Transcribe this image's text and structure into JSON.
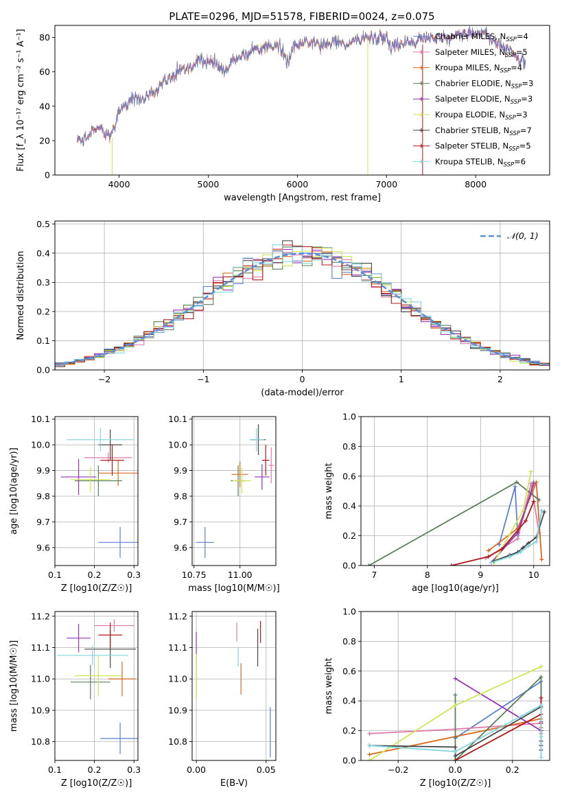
{
  "figure": {
    "title": "PLATE=0296, MJD=51578, FIBERID=0024, z=0.075"
  },
  "chart_data": [
    {
      "id": "spectrum",
      "type": "line",
      "xlabel": "wavelength [Angstrom, rest frame]",
      "ylabel": "Flux [f_λ 10⁻¹⁷ erg cm⁻² s⁻¹ A⁻¹]",
      "xlim": [
        3280,
        8830
      ],
      "ylim": [
        0,
        87
      ],
      "xticks": [
        4000,
        5000,
        6000,
        7000,
        8000
      ],
      "yticks": [
        0,
        20,
        40,
        60,
        80
      ],
      "legend": "upper right",
      "note_series": "Nine overlapping model/observed spectra, broad continuum approximated",
      "continuum": {
        "x": [
          3530,
          3600,
          3700,
          3800,
          3900,
          3960,
          4000,
          4100,
          4200,
          4300,
          4400,
          4500,
          4600,
          4700,
          4800,
          4900,
          5000,
          5100,
          5175,
          5250,
          5300,
          5400,
          5500,
          5600,
          5700,
          5800,
          5893,
          5950,
          6100,
          6200,
          6300,
          6400,
          6500,
          6563,
          6600,
          6700,
          6800,
          6900,
          7000,
          7050,
          7100,
          7200,
          7300,
          7400,
          7500,
          7600,
          7700,
          7800,
          7900,
          8000,
          8100,
          8200,
          8300,
          8400,
          8560
        ],
        "y": [
          22,
          20,
          26,
          27,
          22,
          30,
          37,
          42,
          45,
          45,
          50,
          55,
          58,
          61,
          63,
          66,
          66,
          64,
          60,
          64,
          67,
          70,
          72,
          73,
          75,
          76,
          65,
          75,
          77,
          77,
          76,
          76,
          78,
          74,
          78,
          80,
          80,
          80,
          80,
          74,
          76,
          77,
          76,
          80,
          80,
          80,
          80,
          82,
          82,
          82,
          82,
          79,
          75,
          72,
          65
        ]
      },
      "series": [
        {
          "name": "Chabrier MILES, N_SSP=4",
          "color": "#5b7fd1",
          "marker": "+"
        },
        {
          "name": "Salpeter MILES, N_SSP=5",
          "color": "#e07aa8",
          "marker": "+"
        },
        {
          "name": "Kroupa MILES, N_SSP=4",
          "color": "#d9681d",
          "marker": "+"
        },
        {
          "name": "Chabrier ELODIE, N_SSP=3",
          "color": "#5a7f5a",
          "marker": "+"
        },
        {
          "name": "Salpeter ELODIE, N_SSP=3",
          "color": "#9632b4",
          "marker": "+"
        },
        {
          "name": "Kroupa ELODIE, N_SSP=3",
          "color": "#cfe550",
          "marker": "+"
        },
        {
          "name": "Chabrier STELIB, N_SSP=7",
          "color": "#444444",
          "marker": "+"
        },
        {
          "name": "Salpeter STELIB, N_SSP=5",
          "color": "#b01818",
          "marker": "+"
        },
        {
          "name": "Kroupa STELIB, N_SSP=6",
          "color": "#7fd6de",
          "marker": "+"
        }
      ],
      "dropouts": [
        {
          "series": 5,
          "x": 3920,
          "note": "model edge drop to 0"
        },
        {
          "series": 5,
          "x": 6790,
          "note": "drop to 0"
        },
        {
          "series": 7,
          "x": 7405,
          "note": "drop to 0"
        }
      ]
    },
    {
      "id": "residuals",
      "type": "histogram",
      "xlabel": "(data-model)/error",
      "ylabel": "Normed distribution",
      "xlim": [
        -2.5,
        2.5
      ],
      "ylim": [
        0,
        0.51
      ],
      "xticks": [
        -2,
        -1,
        0,
        1,
        2
      ],
      "yticks": [
        0.0,
        0.1,
        0.2,
        0.3,
        0.4,
        0.5
      ],
      "grid": true,
      "legend_label": "𝒩(0, 1)",
      "legend": "upper right",
      "bin_width": 0.1,
      "gaussian": {
        "mean": 0,
        "sigma": 1,
        "color": "#5b8fd6",
        "style": "dashed"
      }
    },
    {
      "id": "age_vs_Z",
      "type": "errorbar",
      "xlabel": "Z [log10(Z/Z☉)]",
      "ylabel": "age [log10(age/yr)]",
      "xlim": [
        0.1,
        0.31
      ],
      "ylim": [
        9.53,
        10.11
      ],
      "xticks": [
        0.1,
        0.2,
        0.3
      ],
      "yticks": [
        9.6,
        9.7,
        9.8,
        9.9,
        10.0,
        10.1
      ],
      "grid": true,
      "points": [
        {
          "series": 0,
          "x": 0.265,
          "y": 9.62,
          "xerr": 0.055,
          "yerr": 0.06
        },
        {
          "series": 1,
          "x": 0.235,
          "y": 9.95,
          "xerr": 0.06,
          "yerr": 0.02
        },
        {
          "series": 2,
          "x": 0.26,
          "y": 9.89,
          "xerr": 0.05,
          "yerr": 0.05
        },
        {
          "series": 3,
          "x": 0.21,
          "y": 9.86,
          "xerr": 0.06,
          "yerr": 0.06
        },
        {
          "series": 4,
          "x": 0.16,
          "y": 9.875,
          "xerr": 0.045,
          "yerr": 0.07
        },
        {
          "series": 5,
          "x": 0.19,
          "y": 9.865,
          "xerr": 0.05,
          "yerr": 0.05
        },
        {
          "series": 6,
          "x": 0.24,
          "y": 10.0,
          "xerr": 0.03,
          "yerr": 0.06
        },
        {
          "series": 7,
          "x": 0.245,
          "y": 9.94,
          "xerr": 0.03,
          "yerr": 0.06
        },
        {
          "series": 8,
          "x": 0.215,
          "y": 10.02,
          "xerr": 0.085,
          "yerr": 0.045
        }
      ]
    },
    {
      "id": "age_vs_mass",
      "type": "errorbar",
      "xlabel": "mass [log10(M/M☉)]",
      "ylabel": "",
      "xlim": [
        10.74,
        11.195
      ],
      "ylim": [
        9.53,
        10.11
      ],
      "xticks": [
        10.75,
        11.0
      ],
      "xticklabels": [
        "10.75",
        "11.00"
      ],
      "yticks": [
        9.6,
        9.7,
        9.8,
        9.9,
        10.0,
        10.1
      ],
      "grid": true,
      "points": [
        {
          "series": 0,
          "x": 10.81,
          "y": 9.62,
          "xerr": 0.05,
          "yerr": 0.06
        },
        {
          "series": 1,
          "x": 11.17,
          "y": 9.92,
          "xerr": 0.015,
          "yerr": 0.07
        },
        {
          "series": 2,
          "x": 11.0,
          "y": 9.885,
          "xerr": 0.045,
          "yerr": 0.05
        },
        {
          "series": 3,
          "x": 10.99,
          "y": 9.86,
          "xerr": 0.04,
          "yerr": 0.06
        },
        {
          "series": 4,
          "x": 11.12,
          "y": 9.875,
          "xerr": 0.04,
          "yerr": 0.05
        },
        {
          "series": 5,
          "x": 11.01,
          "y": 9.86,
          "xerr": 0.05,
          "yerr": 0.05
        },
        {
          "series": 6,
          "x": 11.1,
          "y": 10.02,
          "xerr": 0.04,
          "yerr": 0.06
        },
        {
          "series": 7,
          "x": 11.14,
          "y": 9.94,
          "xerr": 0.02,
          "yerr": 0.06
        },
        {
          "series": 8,
          "x": 11.09,
          "y": 10.02,
          "xerr": 0.04,
          "yerr": 0.045
        }
      ]
    },
    {
      "id": "weight_vs_age",
      "type": "line",
      "xlabel": "age [log10(age/yr)]",
      "ylabel": "mass weight",
      "xlim": [
        6.75,
        10.3
      ],
      "ylim": [
        0,
        1.0
      ],
      "xticks": [
        7,
        8,
        9,
        10
      ],
      "yticks": [
        0.0,
        0.2,
        0.4,
        0.6,
        0.8,
        1.0
      ],
      "grid": true,
      "series_points": [
        {
          "series": 0,
          "x": [
            9.35,
            9.65,
            9.7,
            10.0
          ],
          "y": [
            0.14,
            0.53,
            0.2,
            0.56
          ]
        },
        {
          "series": 1,
          "x": [
            9.1,
            9.7,
            9.95,
            10.1
          ],
          "y": [
            0.05,
            0.18,
            0.55,
            0.22
          ]
        },
        {
          "series": 2,
          "x": [
            9.15,
            9.7,
            10.05,
            10.15
          ],
          "y": [
            0.1,
            0.25,
            0.56,
            0.04
          ]
        },
        {
          "series": 3,
          "x": [
            6.9,
            9.68,
            10.1
          ],
          "y": [
            0.0,
            0.56,
            0.44
          ]
        },
        {
          "series": 4,
          "x": [
            9.2,
            9.7,
            10.0
          ],
          "y": [
            0.02,
            0.22,
            0.55
          ]
        },
        {
          "series": 5,
          "x": [
            9.25,
            9.8,
            9.95
          ],
          "y": [
            0.02,
            0.37,
            0.63
          ]
        },
        {
          "series": 6,
          "x": [
            9.25,
            9.55,
            9.7,
            9.8,
            9.9,
            10.05,
            10.2
          ],
          "y": [
            0.03,
            0.07,
            0.09,
            0.12,
            0.15,
            0.19,
            0.36
          ]
        },
        {
          "series": 7,
          "x": [
            8.45,
            9.15,
            9.4,
            9.85,
            10.0
          ],
          "y": [
            0.0,
            0.06,
            0.11,
            0.3,
            0.43
          ]
        },
        {
          "series": 8,
          "x": [
            9.2,
            9.55,
            9.75,
            9.9,
            10.05,
            10.15
          ],
          "y": [
            0.02,
            0.06,
            0.09,
            0.13,
            0.16,
            0.37
          ]
        }
      ]
    },
    {
      "id": "mass_vs_Z",
      "type": "errorbar",
      "xlabel": "Z [log10(Z/Z☉)]",
      "ylabel": "mass [log10(M/M☉)]",
      "xlim": [
        0.1,
        0.31
      ],
      "ylim": [
        10.74,
        11.215
      ],
      "xticks": [
        0.1,
        0.2,
        0.3
      ],
      "yticks": [
        10.8,
        10.9,
        11.0,
        11.1,
        11.2
      ],
      "grid": true,
      "points": [
        {
          "series": 0,
          "x": 0.265,
          "y": 10.81,
          "xerr": 0.05,
          "yerr": 0.05
        },
        {
          "series": 1,
          "x": 0.25,
          "y": 11.17,
          "xerr": 0.05,
          "yerr": 0.02
        },
        {
          "series": 2,
          "x": 0.27,
          "y": 11.0,
          "xerr": 0.035,
          "yerr": 0.055
        },
        {
          "series": 3,
          "x": 0.19,
          "y": 10.99,
          "xerr": 0.05,
          "yerr": 0.055
        },
        {
          "series": 4,
          "x": 0.16,
          "y": 11.13,
          "xerr": 0.03,
          "yerr": 0.045
        },
        {
          "series": 5,
          "x": 0.21,
          "y": 11.01,
          "xerr": 0.06,
          "yerr": 0.065
        },
        {
          "series": 6,
          "x": 0.24,
          "y": 11.095,
          "xerr": 0.065,
          "yerr": 0.06
        },
        {
          "series": 7,
          "x": 0.24,
          "y": 11.14,
          "xerr": 0.03,
          "yerr": 0.04
        },
        {
          "series": 8,
          "x": 0.195,
          "y": 11.075,
          "xerr": 0.09,
          "yerr": 0.03
        }
      ]
    },
    {
      "id": "mass_vs_ebv",
      "type": "errorbar",
      "xlabel": "E(B-V)",
      "ylabel": "",
      "xlim": [
        -0.003,
        0.057
      ],
      "ylim": [
        10.74,
        11.215
      ],
      "xticks": [
        0.0,
        0.05
      ],
      "xticklabels": [
        "0.00",
        "0.05"
      ],
      "yticks": [
        10.8,
        10.9,
        11.0,
        11.1,
        11.2
      ],
      "grid": true,
      "points": [
        {
          "series": 0,
          "x": 0.053,
          "y": 10.83,
          "xerr": 0,
          "yerr": 0.08
        },
        {
          "series": 1,
          "x": 0.029,
          "y": 11.15,
          "xerr": 0,
          "yerr": 0.03
        },
        {
          "series": 2,
          "x": 0.032,
          "y": 11.0,
          "xerr": 0,
          "yerr": 0.05
        },
        {
          "series": 3,
          "x": 0.0,
          "y": 11.0,
          "xerr": 0,
          "yerr": 0.06
        },
        {
          "series": 4,
          "x": 0.0,
          "y": 11.1,
          "xerr": 0,
          "yerr": 0.05
        },
        {
          "series": 5,
          "x": 0.0,
          "y": 11.01,
          "xerr": 0,
          "yerr": 0.07
        },
        {
          "series": 6,
          "x": 0.044,
          "y": 11.1,
          "xerr": 0,
          "yerr": 0.06
        },
        {
          "series": 7,
          "x": 0.046,
          "y": 11.15,
          "xerr": 0,
          "yerr": 0.035
        },
        {
          "series": 8,
          "x": 0.03,
          "y": 11.07,
          "xerr": 0,
          "yerr": 0.03
        }
      ]
    },
    {
      "id": "weight_vs_Z",
      "type": "line",
      "xlabel": "Z [log10(Z/Z☉)]",
      "ylabel": "mass weight",
      "xlim": [
        -0.33,
        0.33
      ],
      "ylim": [
        0,
        1.0
      ],
      "xticks": [
        -0.2,
        0.0,
        0.2
      ],
      "xticklabels": [
        "−0.2",
        "0.0",
        "0.2"
      ],
      "yticks": [
        0.0,
        0.2,
        0.4,
        0.6,
        0.8,
        1.0
      ],
      "grid": true,
      "series_points": [
        {
          "series": 0,
          "x": [
            0.0,
            0.3,
            0.3
          ],
          "y": [
            0.15,
            0.53,
            0.1
          ]
        },
        {
          "series": 1,
          "x": [
            -0.3,
            0.0,
            0.3,
            0.3
          ],
          "y": [
            0.18,
            0.21,
            0.25,
            0.18
          ]
        },
        {
          "series": 2,
          "x": [
            -0.3,
            0.0,
            0.3,
            0.3
          ],
          "y": [
            0.04,
            0.16,
            0.28,
            0.22
          ]
        },
        {
          "series": 3,
          "x": [
            0.0,
            0.0,
            0.3,
            0.3
          ],
          "y": [
            0.44,
            0.0,
            0.56,
            0.2
          ]
        },
        {
          "series": 4,
          "x": [
            0.0,
            0.3,
            0.3
          ],
          "y": [
            0.55,
            0.2,
            0.26
          ]
        },
        {
          "series": 5,
          "x": [
            -0.3,
            0.0,
            0.3
          ],
          "y": [
            0.0,
            0.37,
            0.63
          ]
        },
        {
          "series": 6,
          "x": [
            -0.3,
            0.0,
            0.0,
            0.3,
            0.3,
            0.3,
            0.3
          ],
          "y": [
            0.1,
            0.09,
            0.03,
            0.36,
            0.07,
            0.1,
            0.13
          ]
        },
        {
          "series": 7,
          "x": [
            0.0,
            0.3,
            0.3,
            0.3
          ],
          "y": [
            0.0,
            0.31,
            0.42,
            0.25
          ]
        },
        {
          "series": 8,
          "x": [
            -0.3,
            0.0,
            0.3,
            0.3,
            0.3
          ],
          "y": [
            0.1,
            0.06,
            0.37,
            0.16,
            0.02
          ]
        }
      ]
    }
  ]
}
